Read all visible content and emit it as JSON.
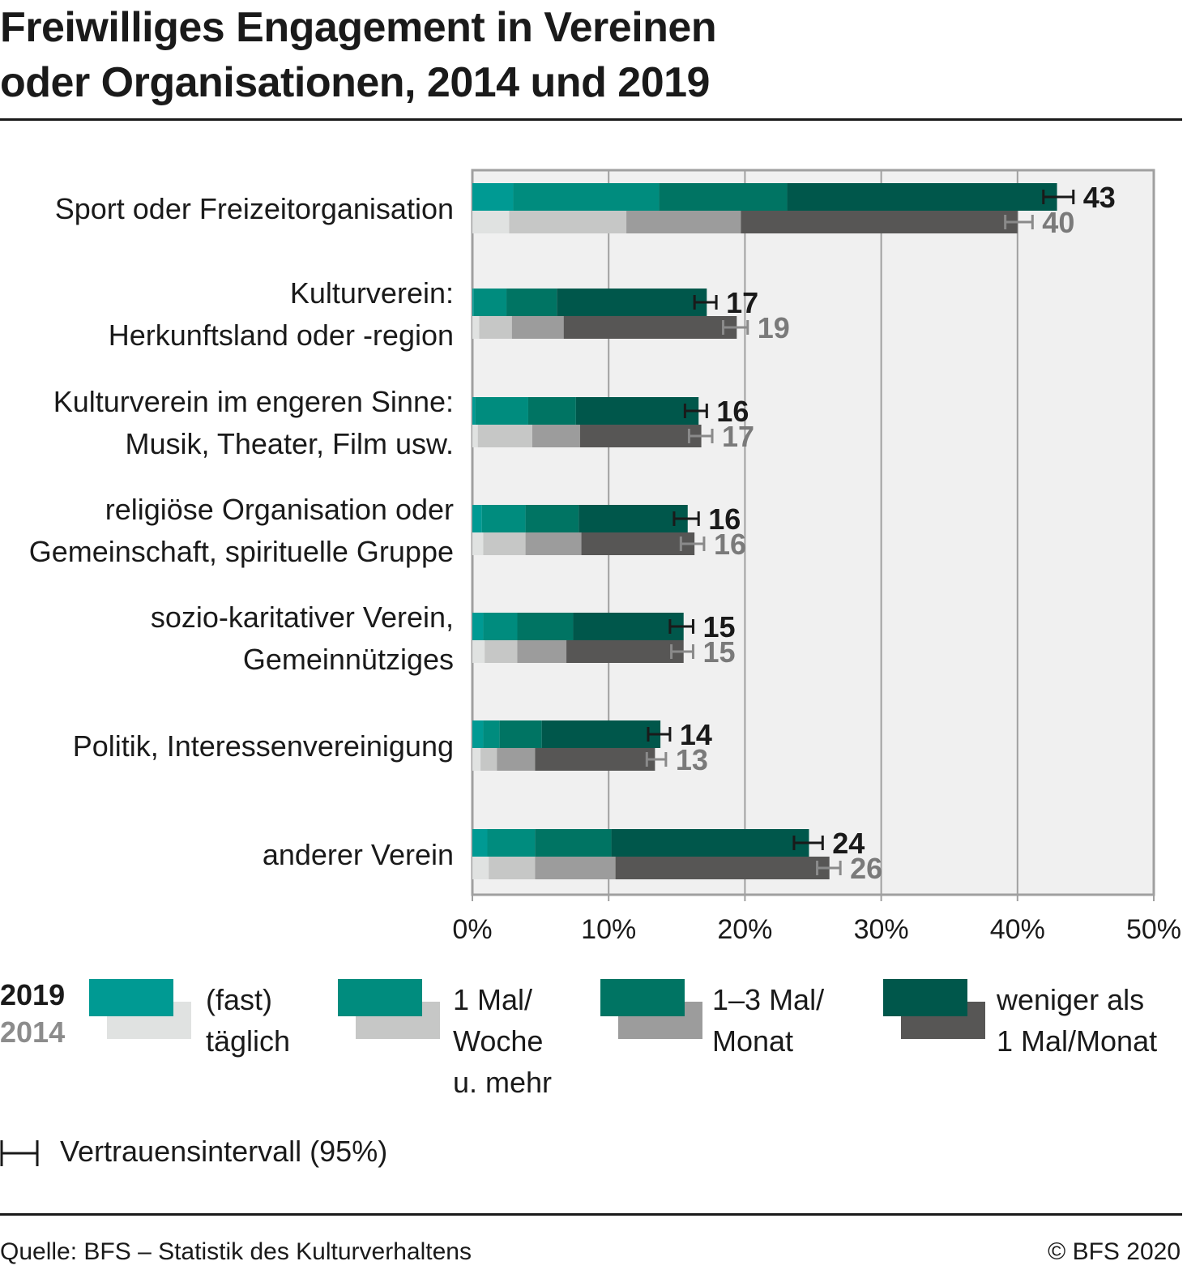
{
  "header": {
    "title_line1": "Freiwilliges Engagement in Vereinen",
    "title_line2": "oder Organisationen, 2014 und 2019"
  },
  "colors": {
    "y2019": [
      "#009a93",
      "#008c7e",
      "#007463",
      "#00574b"
    ],
    "y2014": [
      "#e0e2e1",
      "#c6c7c6",
      "#9c9c9c",
      "#575655"
    ],
    "plot_bg": "#f0f0f0",
    "grid": "#a0a0a0",
    "label_2019": "#1a1a1a",
    "label_2014": "#7a7a7a"
  },
  "chart_data": {
    "type": "bar",
    "orientation": "horizontal",
    "stacked": true,
    "title": "Freiwilliges Engagement in Vereinen oder Organisationen, 2014 und 2019",
    "xlabel": "",
    "ylabel": "",
    "xlim": [
      0,
      50
    ],
    "x_ticks": [
      "0%",
      "10%",
      "20%",
      "30%",
      "40%",
      "50%"
    ],
    "x_tick_values": [
      0,
      10,
      20,
      30,
      40,
      50
    ],
    "grid": true,
    "categories": [
      [
        "Sport oder Freizeitorganisation"
      ],
      [
        "Kulturverein:",
        "Herkunftsland oder -region"
      ],
      [
        "Kulturverein im engeren Sinne:",
        "Musik, Theater, Film usw."
      ],
      [
        "religiöse Organisation oder",
        "Gemeinschaft, spirituelle Gruppe"
      ],
      [
        "sozio-karitativer Verein,",
        "Gemeinnütziges"
      ],
      [
        "Politik, Interessenvereinigung"
      ],
      [
        "anderer Verein"
      ]
    ],
    "segment_names": [
      "(fast) täglich",
      "1 Mal/Woche u. mehr",
      "1–3 Mal/Monat",
      "weniger als 1 Mal/Monat"
    ],
    "years": [
      {
        "name": "2019",
        "segments": [
          [
            3.0,
            10.7,
            9.4,
            19.8
          ],
          [
            0.1,
            2.4,
            3.7,
            11.0
          ],
          [
            0.2,
            3.9,
            3.5,
            9.0
          ],
          [
            0.7,
            3.2,
            3.9,
            8.0
          ],
          [
            0.8,
            2.5,
            4.1,
            8.1
          ],
          [
            0.8,
            1.2,
            3.1,
            8.7
          ],
          [
            1.1,
            3.5,
            5.6,
            14.5
          ]
        ],
        "totals": [
          43,
          17,
          16,
          16,
          15,
          14,
          24
        ],
        "ci": [
          [
            41.9,
            44.1
          ],
          [
            16.3,
            17.9
          ],
          [
            15.6,
            17.2
          ],
          [
            14.8,
            16.6
          ],
          [
            14.5,
            16.2
          ],
          [
            12.9,
            14.5
          ],
          [
            23.6,
            25.7
          ]
        ]
      },
      {
        "name": "2014",
        "segments": [
          [
            2.7,
            8.6,
            8.4,
            20.3
          ],
          [
            0.5,
            2.4,
            3.8,
            12.7
          ],
          [
            0.4,
            4.0,
            3.5,
            8.9
          ],
          [
            0.8,
            3.1,
            4.1,
            8.3
          ],
          [
            0.9,
            2.4,
            3.6,
            8.6
          ],
          [
            0.6,
            1.2,
            2.8,
            8.8
          ],
          [
            1.2,
            3.4,
            5.9,
            15.7
          ]
        ],
        "totals": [
          40,
          19,
          17,
          16,
          15,
          13,
          26
        ],
        "ci": [
          [
            39.1,
            41.1
          ],
          [
            18.4,
            20.2
          ],
          [
            15.9,
            17.6
          ],
          [
            15.3,
            17.0
          ],
          [
            14.6,
            16.2
          ],
          [
            12.8,
            14.2
          ],
          [
            25.3,
            27.0
          ]
        ]
      }
    ],
    "legend": {
      "position": "bottom",
      "year_labels": [
        "2019",
        "2014"
      ],
      "items": [
        {
          "label": "(fast)\ntäglich"
        },
        {
          "label": "1 Mal/\nWoche\nu. mehr"
        },
        {
          "label": "1–3 Mal/\nMonat"
        },
        {
          "label": "weniger als\n1 Mal/Monat"
        }
      ],
      "ci_label": "Vertrauensintervall (95%)"
    }
  },
  "footer": {
    "source": "Quelle: BFS – Statistik des Kulturverhaltens",
    "copyright": "© BFS 2020"
  }
}
